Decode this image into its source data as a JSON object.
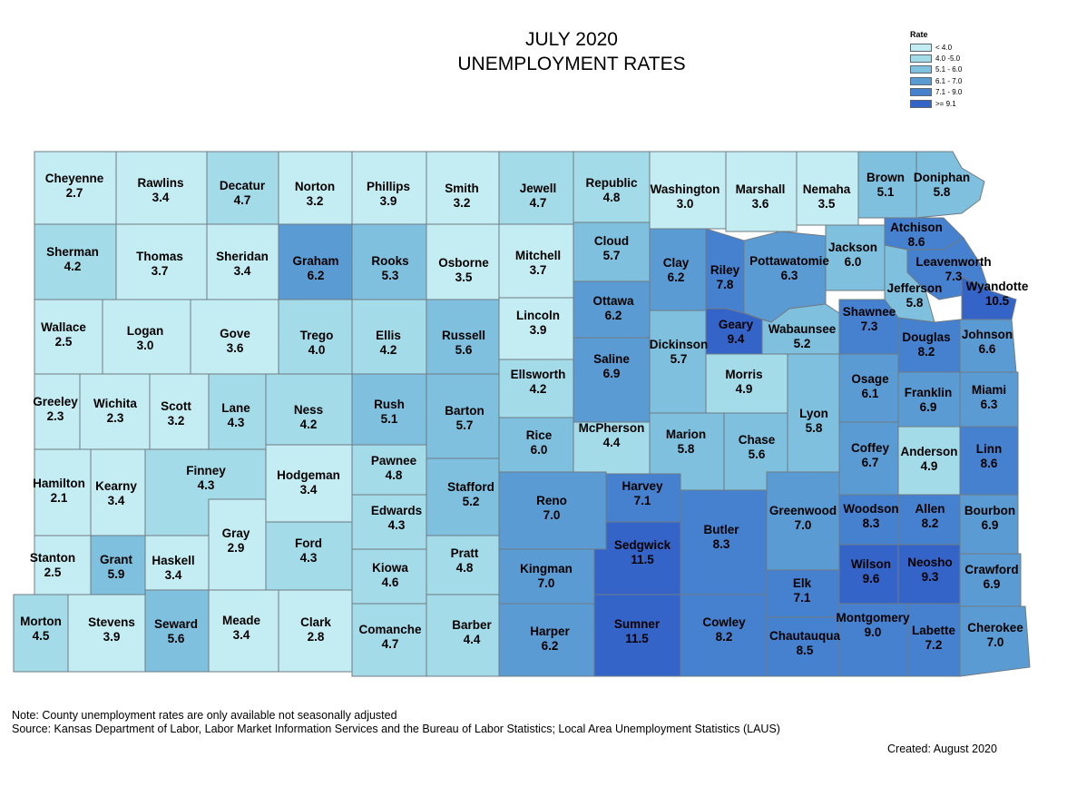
{
  "title": {
    "line1": "JULY 2020",
    "line2": "UNEMPLOYMENT RATES"
  },
  "legend": {
    "title": "Rate",
    "items": [
      {
        "label": "< 4.0",
        "color": "#c4edf3"
      },
      {
        "label": "4.0 -5.0",
        "color": "#a4dbe9"
      },
      {
        "label": "5.1 - 6.0",
        "color": "#7ec0de"
      },
      {
        "label": "6.1 - 7.0",
        "color": "#5b9bd3"
      },
      {
        "label": "7.1 - 9.0",
        "color": "#4681cf"
      },
      {
        "label": ">= 9.1",
        "color": "#3564c8"
      }
    ]
  },
  "notes": {
    "line1": "Note: County unemployment rates are only available not seasonally adjusted",
    "line2": "Source: Kansas Department of Labor, Labor Market Information Services and the Bureau of Labor Statistics; Local Area Unemployment Statistics (LAUS)",
    "created": "Created:  August 2020"
  },
  "counties": [
    {
      "name": "Cheyenne",
      "rate": "2.7"
    },
    {
      "name": "Rawlins",
      "rate": "3.4"
    },
    {
      "name": "Decatur",
      "rate": "4.7"
    },
    {
      "name": "Norton",
      "rate": "3.2"
    },
    {
      "name": "Phillips",
      "rate": "3.9"
    },
    {
      "name": "Smith",
      "rate": "3.2"
    },
    {
      "name": "Jewell",
      "rate": "4.7"
    },
    {
      "name": "Republic",
      "rate": "4.8"
    },
    {
      "name": "Washington",
      "rate": "3.0"
    },
    {
      "name": "Marshall",
      "rate": "3.6"
    },
    {
      "name": "Nemaha",
      "rate": "3.5"
    },
    {
      "name": "Brown",
      "rate": "5.1"
    },
    {
      "name": "Doniphan",
      "rate": "5.8"
    },
    {
      "name": "Sherman",
      "rate": "4.2"
    },
    {
      "name": "Thomas",
      "rate": "3.7"
    },
    {
      "name": "Sheridan",
      "rate": "3.4"
    },
    {
      "name": "Graham",
      "rate": "6.2"
    },
    {
      "name": "Rooks",
      "rate": "5.3"
    },
    {
      "name": "Osborne",
      "rate": "3.5"
    },
    {
      "name": "Mitchell",
      "rate": "3.7"
    },
    {
      "name": "Cloud",
      "rate": "5.7"
    },
    {
      "name": "Clay",
      "rate": "6.2"
    },
    {
      "name": "Riley",
      "rate": "7.8"
    },
    {
      "name": "Pottawatomie",
      "rate": "6.3"
    },
    {
      "name": "Jackson",
      "rate": "6.0"
    },
    {
      "name": "Atchison",
      "rate": "8.6"
    },
    {
      "name": "Leavenworth",
      "rate": "7.3"
    },
    {
      "name": "Jefferson",
      "rate": "5.8"
    },
    {
      "name": "Wyandotte",
      "rate": "10.5"
    },
    {
      "name": "Wallace",
      "rate": "2.5"
    },
    {
      "name": "Logan",
      "rate": "3.0"
    },
    {
      "name": "Gove",
      "rate": "3.6"
    },
    {
      "name": "Trego",
      "rate": "4.0"
    },
    {
      "name": "Ellis",
      "rate": "4.2"
    },
    {
      "name": "Russell",
      "rate": "5.6"
    },
    {
      "name": "Lincoln",
      "rate": "3.9"
    },
    {
      "name": "Ottawa",
      "rate": "6.2"
    },
    {
      "name": "Geary",
      "rate": "9.4"
    },
    {
      "name": "Wabaunsee",
      "rate": "5.2"
    },
    {
      "name": "Shawnee",
      "rate": "7.3"
    },
    {
      "name": "Douglas",
      "rate": "8.2"
    },
    {
      "name": "Johnson",
      "rate": "6.6"
    },
    {
      "name": "Dickinson",
      "rate": "5.7"
    },
    {
      "name": "Saline",
      "rate": "6.9"
    },
    {
      "name": "Ellsworth",
      "rate": "4.2"
    },
    {
      "name": "Morris",
      "rate": "4.9"
    },
    {
      "name": "Greeley",
      "rate": "2.3"
    },
    {
      "name": "Wichita",
      "rate": "2.3"
    },
    {
      "name": "Scott",
      "rate": "3.2"
    },
    {
      "name": "Lane",
      "rate": "4.3"
    },
    {
      "name": "Ness",
      "rate": "4.2"
    },
    {
      "name": "Rush",
      "rate": "5.1"
    },
    {
      "name": "Barton",
      "rate": "5.7"
    },
    {
      "name": "Rice",
      "rate": "6.0"
    },
    {
      "name": "McPherson",
      "rate": "4.4"
    },
    {
      "name": "Marion",
      "rate": "5.8"
    },
    {
      "name": "Chase",
      "rate": "5.6"
    },
    {
      "name": "Lyon",
      "rate": "5.8"
    },
    {
      "name": "Osage",
      "rate": "6.1"
    },
    {
      "name": "Franklin",
      "rate": "6.9"
    },
    {
      "name": "Miami",
      "rate": "6.3"
    },
    {
      "name": "Hamilton",
      "rate": "2.1"
    },
    {
      "name": "Kearny",
      "rate": "3.4"
    },
    {
      "name": "Finney",
      "rate": "4.3"
    },
    {
      "name": "Hodgeman",
      "rate": "3.4"
    },
    {
      "name": "Pawnee",
      "rate": "4.8"
    },
    {
      "name": "Stafford",
      "rate": "5.2"
    },
    {
      "name": "Reno",
      "rate": "7.0"
    },
    {
      "name": "Harvey",
      "rate": "7.1"
    },
    {
      "name": "Butler",
      "rate": "8.3"
    },
    {
      "name": "Greenwood",
      "rate": "7.0"
    },
    {
      "name": "Coffey",
      "rate": "6.7"
    },
    {
      "name": "Anderson",
      "rate": "4.9"
    },
    {
      "name": "Linn",
      "rate": "8.6"
    },
    {
      "name": "Gray",
      "rate": "2.9"
    },
    {
      "name": "Edwards",
      "rate": "4.3"
    },
    {
      "name": "Ford",
      "rate": "4.3"
    },
    {
      "name": "Stanton",
      "rate": "2.5"
    },
    {
      "name": "Grant",
      "rate": "5.9"
    },
    {
      "name": "Haskell",
      "rate": "3.4"
    },
    {
      "name": "Kiowa",
      "rate": "4.6"
    },
    {
      "name": "Pratt",
      "rate": "4.8"
    },
    {
      "name": "Kingman",
      "rate": "7.0"
    },
    {
      "name": "Sedgwick",
      "rate": "11.5"
    },
    {
      "name": "Woodson",
      "rate": "8.3"
    },
    {
      "name": "Allen",
      "rate": "8.2"
    },
    {
      "name": "Bourbon",
      "rate": "6.9"
    },
    {
      "name": "Wilson",
      "rate": "9.6"
    },
    {
      "name": "Neosho",
      "rate": "9.3"
    },
    {
      "name": "Crawford",
      "rate": "6.9"
    },
    {
      "name": "Elk",
      "rate": "7.1"
    },
    {
      "name": "Morton",
      "rate": "4.5"
    },
    {
      "name": "Stevens",
      "rate": "3.9"
    },
    {
      "name": "Seward",
      "rate": "5.6"
    },
    {
      "name": "Meade",
      "rate": "3.4"
    },
    {
      "name": "Clark",
      "rate": "2.8"
    },
    {
      "name": "Comanche",
      "rate": "4.7"
    },
    {
      "name": "Barber",
      "rate": "4.4"
    },
    {
      "name": "Harper",
      "rate": "6.2"
    },
    {
      "name": "Sumner",
      "rate": "11.5"
    },
    {
      "name": "Cowley",
      "rate": "8.2"
    },
    {
      "name": "Chautauqua",
      "rate": "8.5"
    },
    {
      "name": "Montgomery",
      "rate": "9.0"
    },
    {
      "name": "Labette",
      "rate": "7.2"
    },
    {
      "name": "Cherokee",
      "rate": "7.0"
    }
  ]
}
